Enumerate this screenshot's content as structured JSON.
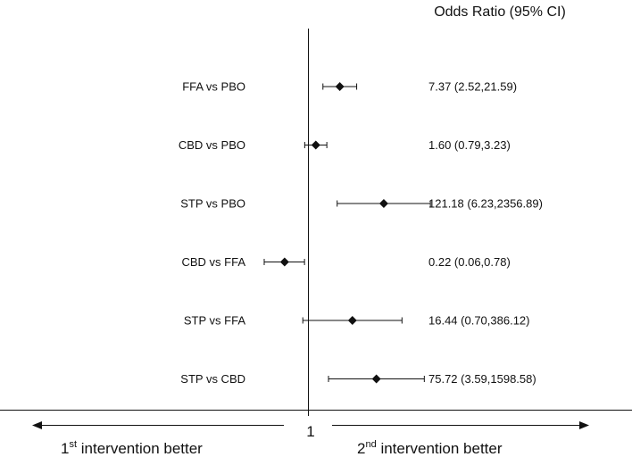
{
  "chart_data": {
    "type": "forest",
    "column_header": "Odds Ratio (95% CI)",
    "reference_value": 1,
    "reference_label": "1",
    "left_direction": {
      "prefix": "1",
      "sup": "st",
      "text": " intervention better"
    },
    "right_direction": {
      "prefix": "2",
      "sup": "nd",
      "text": " intervention better"
    },
    "rows": [
      {
        "label": "FFA vs PBO",
        "or": 7.37,
        "lo": 2.52,
        "hi": 21.59,
        "text": "7.37 (2.52,21.59)"
      },
      {
        "label": "CBD vs PBO",
        "or": 1.6,
        "lo": 0.79,
        "hi": 3.23,
        "text": "1.60 (0.79,3.23)"
      },
      {
        "label": "STP vs PBO",
        "or": 121.18,
        "lo": 6.23,
        "hi": 2356.89,
        "text": "121.18 (6.23,2356.89)"
      },
      {
        "label": "CBD vs FFA",
        "or": 0.22,
        "lo": 0.06,
        "hi": 0.78,
        "text": "0.22 (0.06,0.78)"
      },
      {
        "label": "STP vs FFA",
        "or": 16.44,
        "lo": 0.7,
        "hi": 386.12,
        "text": "16.44 (0.70,386.12)"
      },
      {
        "label": "STP vs CBD",
        "or": 75.72,
        "lo": 3.59,
        "hi": 1598.58,
        "text": "75.72 (3.59,1598.58)"
      }
    ],
    "scale": "log",
    "grid": false
  }
}
